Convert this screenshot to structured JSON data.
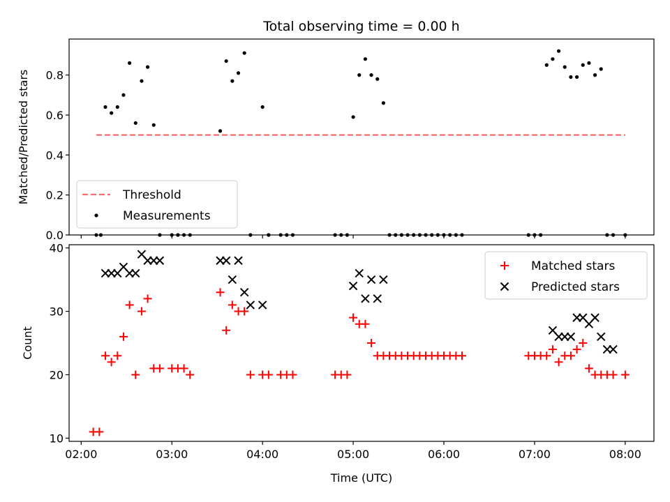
{
  "chart_data": [
    {
      "type": "scatter",
      "title": "Total observing time = 0.00 h",
      "ylabel": "Matched/Predicted stars",
      "ylim": [
        0,
        0.98
      ],
      "yticks": [
        0.0,
        0.2,
        0.4,
        0.6,
        0.8
      ],
      "ytick_labels": [
        "0.0",
        "0.2",
        "0.4",
        "0.6",
        "0.8"
      ],
      "xlim": [
        "01:52",
        "08:19"
      ],
      "legend_placement": "lower-left",
      "series": [
        {
          "name": "Threshold",
          "kind": "line",
          "color": "#ff6b6b",
          "x": [
            "02:10",
            "08:00"
          ],
          "y": [
            0.5,
            0.5
          ]
        },
        {
          "name": "Measurements",
          "kind": "dot",
          "color": "#000000",
          "x": [
            "02:10",
            "02:13",
            "02:16",
            "02:20",
            "02:24",
            "02:28",
            "02:32",
            "02:36",
            "02:40",
            "02:44",
            "02:48",
            "02:52",
            "03:00",
            "03:04",
            "03:08",
            "03:12",
            "03:32",
            "03:36",
            "03:40",
            "03:44",
            "03:48",
            "03:52",
            "04:00",
            "04:04",
            "04:12",
            "04:16",
            "04:20",
            "04:48",
            "04:52",
            "04:56",
            "05:00",
            "05:04",
            "05:08",
            "05:12",
            "05:16",
            "05:20",
            "05:24",
            "05:28",
            "05:32",
            "05:36",
            "05:40",
            "05:44",
            "05:48",
            "05:52",
            "05:56",
            "06:00",
            "06:04",
            "06:08",
            "06:12",
            "06:56",
            "07:00",
            "07:04",
            "07:08",
            "07:12",
            "07:16",
            "07:20",
            "07:24",
            "07:28",
            "07:32",
            "07:36",
            "07:40",
            "07:44",
            "07:48",
            "07:52",
            "08:00"
          ],
          "y": [
            0,
            0,
            0.64,
            0.61,
            0.64,
            0.7,
            0.86,
            0.56,
            0.77,
            0.84,
            0.55,
            0,
            0,
            0,
            0,
            0,
            0.52,
            0.87,
            0.77,
            0.81,
            0.91,
            0,
            0.64,
            0,
            0,
            0,
            0,
            0,
            0,
            0,
            0.59,
            0.8,
            0.88,
            0.8,
            0.78,
            0.66,
            0,
            0,
            0,
            0,
            0,
            0,
            0,
            0,
            0,
            0,
            0,
            0,
            0,
            0,
            0,
            0,
            0.85,
            0.88,
            0.92,
            0.84,
            0.79,
            0.79,
            0.85,
            0.86,
            0.8,
            0.83,
            0,
            0,
            0
          ]
        }
      ]
    },
    {
      "type": "scatter",
      "xlabel": "Time (UTC)",
      "ylabel": "Count",
      "ylim": [
        9.5,
        40.5
      ],
      "yticks": [
        10,
        20,
        30,
        40
      ],
      "ytick_labels": [
        "10",
        "20",
        "30",
        "40"
      ],
      "xlim": [
        "01:52",
        "08:19"
      ],
      "xticks": [
        "02:00",
        "03:00",
        "04:00",
        "05:00",
        "06:00",
        "07:00",
        "08:00"
      ],
      "xtick_labels": [
        "02:00",
        "03:00",
        "04:00",
        "05:00",
        "06:00",
        "07:00",
        "08:00"
      ],
      "legend_placement": "upper-right",
      "series": [
        {
          "name": "Matched stars",
          "marker": "plus",
          "color": "#ff0000",
          "x": [
            "02:08",
            "02:12",
            "02:16",
            "02:20",
            "02:24",
            "02:28",
            "02:32",
            "02:36",
            "02:40",
            "02:44",
            "02:48",
            "02:52",
            "03:00",
            "03:04",
            "03:08",
            "03:12",
            "03:32",
            "03:36",
            "03:40",
            "03:44",
            "03:48",
            "03:52",
            "04:00",
            "04:04",
            "04:12",
            "04:16",
            "04:20",
            "04:48",
            "04:52",
            "04:56",
            "05:00",
            "05:04",
            "05:08",
            "05:12",
            "05:16",
            "05:20",
            "05:24",
            "05:28",
            "05:32",
            "05:36",
            "05:40",
            "05:44",
            "05:48",
            "05:52",
            "05:56",
            "06:00",
            "06:04",
            "06:08",
            "06:12",
            "06:56",
            "07:00",
            "07:04",
            "07:08",
            "07:12",
            "07:16",
            "07:20",
            "07:24",
            "07:28",
            "07:32",
            "07:36",
            "07:40",
            "07:44",
            "07:48",
            "07:52",
            "08:00"
          ],
          "y": [
            11,
            11,
            23,
            22,
            23,
            26,
            31,
            20,
            30,
            32,
            21,
            21,
            21,
            21,
            21,
            20,
            33,
            27,
            31,
            30,
            30,
            20,
            20,
            20,
            20,
            20,
            20,
            20,
            20,
            20,
            29,
            28,
            28,
            25,
            23,
            23,
            23,
            23,
            23,
            23,
            23,
            23,
            23,
            23,
            23,
            23,
            23,
            23,
            23,
            23,
            23,
            23,
            23,
            24,
            22,
            23,
            23,
            24,
            25,
            21,
            20,
            20,
            20,
            20,
            20
          ]
        },
        {
          "name": "Predicted stars",
          "marker": "x",
          "color": "#000000",
          "x": [
            "02:16",
            "02:20",
            "02:24",
            "02:28",
            "02:32",
            "02:36",
            "02:40",
            "02:44",
            "02:48",
            "02:52",
            "03:32",
            "03:36",
            "03:40",
            "03:44",
            "03:48",
            "03:52",
            "04:00",
            "05:00",
            "05:04",
            "05:08",
            "05:12",
            "05:16",
            "05:20",
            "07:12",
            "07:16",
            "07:20",
            "07:24",
            "07:28",
            "07:32",
            "07:36",
            "07:40",
            "07:44",
            "07:48",
            "07:52"
          ],
          "y": [
            36,
            36,
            36,
            37,
            36,
            36,
            39,
            38,
            38,
            38,
            38,
            38,
            35,
            38,
            33,
            31,
            31,
            34,
            36,
            32,
            35,
            32,
            35,
            27,
            26,
            26,
            26,
            29,
            29,
            28,
            29,
            26,
            24,
            24
          ]
        }
      ]
    }
  ]
}
